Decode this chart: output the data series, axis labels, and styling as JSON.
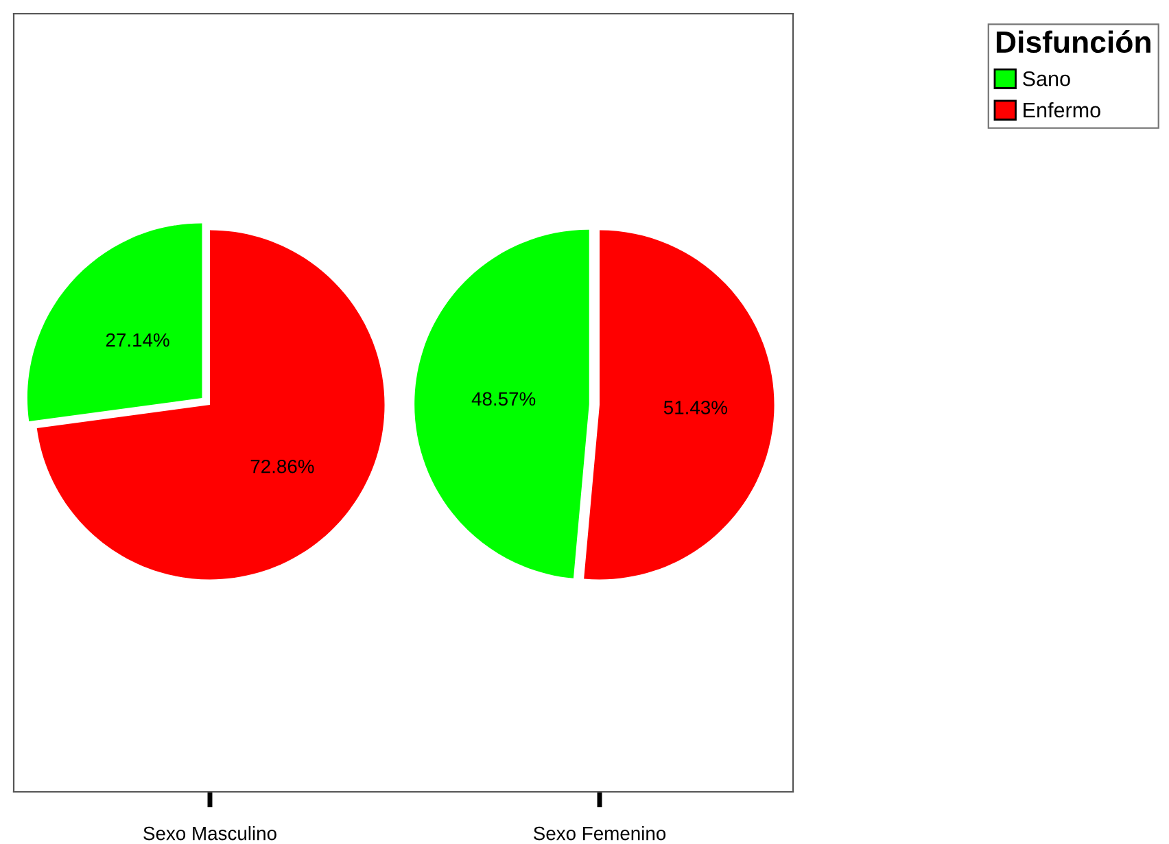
{
  "chart_data": [
    {
      "type": "pie",
      "xlabel": "Sexo Masculino",
      "categories": [
        "Sano",
        "Enfermo"
      ],
      "values": [
        27.14,
        72.86
      ],
      "colors": [
        "#00ff00",
        "#ff0000"
      ],
      "value_labels": [
        "27.14%",
        "72.86%"
      ],
      "legend": "top right",
      "legend_title": "Disfunción"
    },
    {
      "type": "pie",
      "xlabel": "Sexo Femenino",
      "categories": [
        null,
        null
      ],
      "values": [
        48.57,
        51.43
      ],
      "colors": [
        "#00ff00",
        "#ff0000"
      ],
      "value_labels": [
        "48.57%",
        "51.43%"
      ]
    }
  ]
}
